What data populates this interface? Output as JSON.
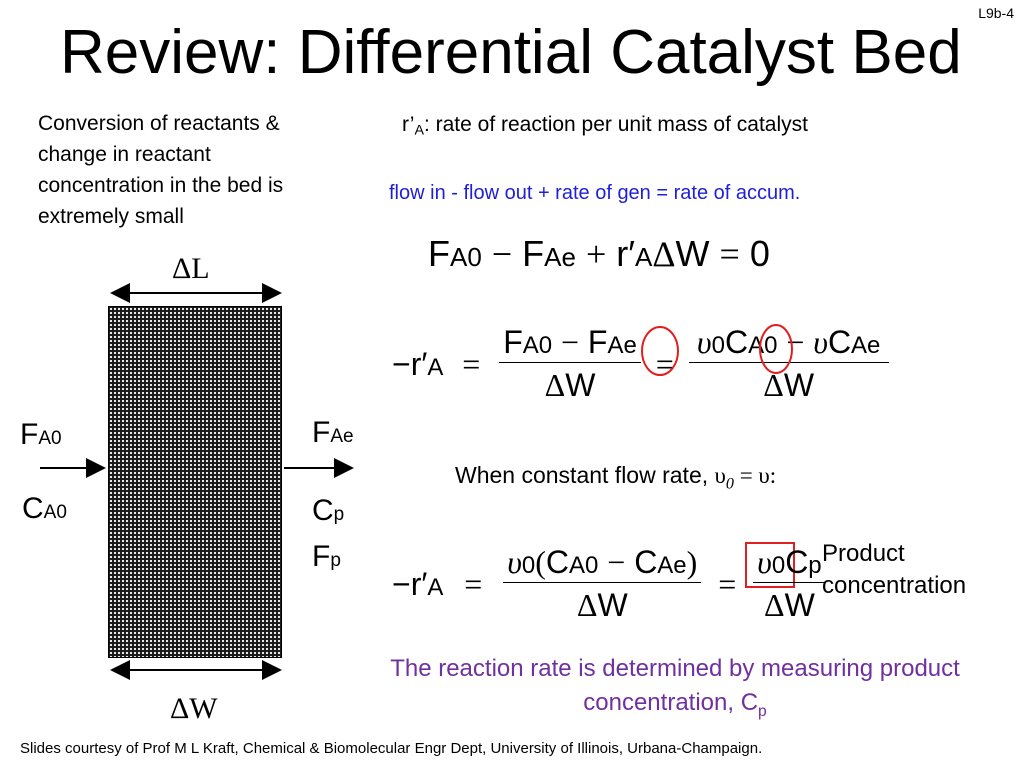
{
  "slide_number": "L9b-4",
  "title": "Review: Differential Catalyst Bed",
  "conversion_note": "Conversion of reactants & change in reactant concentration in the bed is extremely small",
  "rate_definition": {
    "symbol": "r’",
    "subscript": "A",
    "text": ": rate of reaction per unit mass of catalyst"
  },
  "balance_statement": "flow in - flow out + rate of gen = rate of accum.",
  "constant_flow_note": "When constant flow rate,",
  "product_concentration_label": "Product concentration",
  "conclusion": "The reaction rate is determined by measuring product concentration, C",
  "conclusion_subscript": "p",
  "credits": "Slides courtesy of Prof M L Kraft, Chemical & Biomolecular Engr Dept, University of Illinois, Urbana-Champaign.",
  "diagram": {
    "delta_l": "ΔL",
    "delta_w": "ΔW",
    "inlet_flow": {
      "symbol": "F",
      "subscript": "A0"
    },
    "inlet_concentration": {
      "symbol": "C",
      "subscript": "A0"
    },
    "outlet_flow": {
      "symbol": "F",
      "subscript": "Ae"
    },
    "product_concentration": {
      "symbol": "C",
      "subscript": "p"
    },
    "product_flow": {
      "symbol": "F",
      "subscript": "p"
    }
  },
  "colors": {
    "balance_blue": "#1f1fd6",
    "conclusion_purple": "#70309f",
    "highlight_red": "#e02020"
  }
}
